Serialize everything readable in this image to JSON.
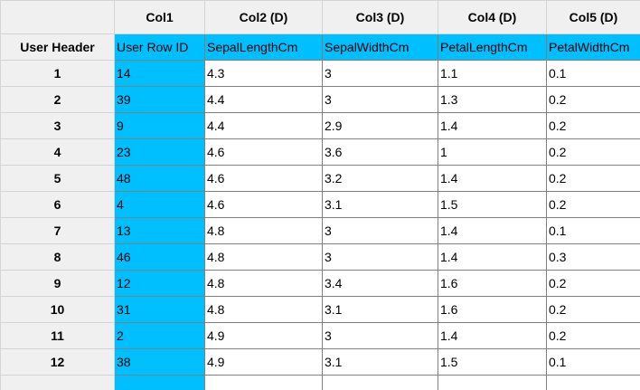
{
  "grid": {
    "corner_label": "",
    "column_headers": [
      "Col1",
      "Col2 (D)",
      "Col3 (D)",
      "Col4 (D)",
      "Col5 (D)"
    ],
    "user_header_label": "User Header",
    "field_headers": [
      "User Row ID",
      "SepalLengthCm",
      "SepalWidthCm",
      "PetalLengthCm",
      "PetalWidthCm"
    ],
    "rows": [
      {
        "num": "1",
        "cells": [
          "14",
          "4.3",
          "3",
          "1.1",
          "0.1"
        ]
      },
      {
        "num": "2",
        "cells": [
          "39",
          "4.4",
          "3",
          "1.3",
          "0.2"
        ]
      },
      {
        "num": "3",
        "cells": [
          "9",
          "4.4",
          "2.9",
          "1.4",
          "0.2"
        ]
      },
      {
        "num": "4",
        "cells": [
          "23",
          "4.6",
          "3.6",
          "1",
          "0.2"
        ]
      },
      {
        "num": "5",
        "cells": [
          "48",
          "4.6",
          "3.2",
          "1.4",
          "0.2"
        ]
      },
      {
        "num": "6",
        "cells": [
          "4",
          "4.6",
          "3.1",
          "1.5",
          "0.2"
        ]
      },
      {
        "num": "7",
        "cells": [
          "13",
          "4.8",
          "3",
          "1.4",
          "0.1"
        ]
      },
      {
        "num": "8",
        "cells": [
          "46",
          "4.8",
          "3",
          "1.4",
          "0.3"
        ]
      },
      {
        "num": "9",
        "cells": [
          "12",
          "4.8",
          "3.4",
          "1.6",
          "0.2"
        ]
      },
      {
        "num": "10",
        "cells": [
          "31",
          "4.8",
          "3.1",
          "1.6",
          "0.2"
        ]
      },
      {
        "num": "11",
        "cells": [
          "2",
          "4.9",
          "3",
          "1.4",
          "0.2"
        ]
      },
      {
        "num": "12",
        "cells": [
          "38",
          "4.9",
          "3.1",
          "1.5",
          "0.1"
        ]
      },
      {
        "num": "",
        "cells": [
          "",
          "",
          "",
          "",
          ""
        ]
      }
    ],
    "colors": {
      "selected_column": "#00bfff",
      "header_background": "#f0f0f0",
      "grid_line": "#7f7f7f",
      "edge_accent": "#3b6fb0"
    }
  }
}
